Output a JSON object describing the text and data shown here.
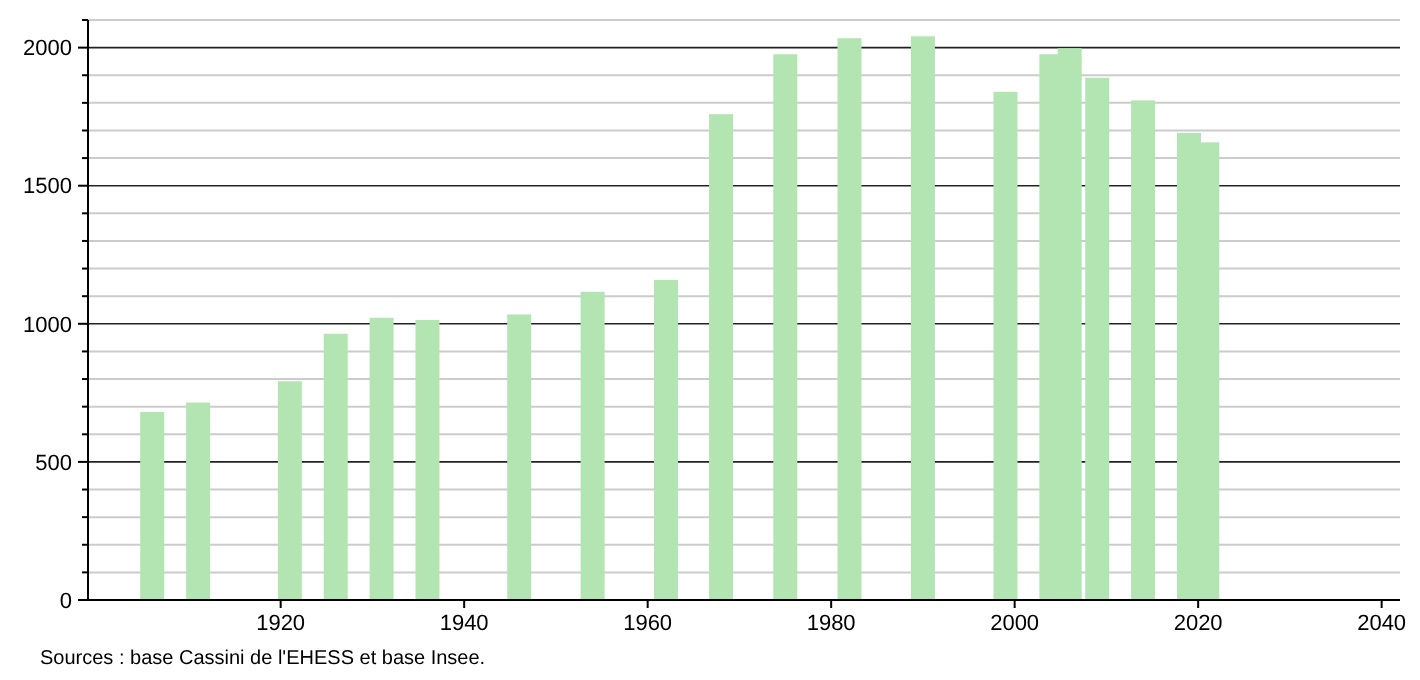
{
  "chart_data": {
    "type": "bar",
    "x": [
      1906,
      1911,
      1921,
      1926,
      1931,
      1936,
      1946,
      1954,
      1962,
      1968,
      1975,
      1982,
      1990,
      1999,
      2004,
      2006,
      2009,
      2014,
      2019,
      2021
    ],
    "values": [
      681,
      715,
      792,
      964,
      1022,
      1014,
      1034,
      1116,
      1159,
      1759,
      1976,
      2034,
      2041,
      1840,
      1976,
      1998,
      1891,
      1809,
      1691,
      1657
    ],
    "color": "#b3e5b3",
    "xlim": [
      1899,
      2042
    ],
    "xticks": [
      1920,
      1940,
      1960,
      1980,
      2000,
      2020,
      2040
    ],
    "ylim": [
      0,
      2100
    ],
    "yticks": [
      0,
      {
        "value": 100,
        "label": null
      },
      {
        "value": 200,
        "label": null
      },
      {
        "value": 300,
        "label": null
      },
      {
        "value": 400,
        "label": null
      },
      500,
      {
        "value": 600,
        "label": null
      },
      {
        "value": 700,
        "label": null
      },
      {
        "value": 800,
        "label": null
      },
      {
        "value": 900,
        "label": null
      },
      1000,
      {
        "value": 1100,
        "label": null
      },
      {
        "value": 1200,
        "label": null
      },
      {
        "value": 1300,
        "label": null
      },
      {
        "value": 1400,
        "label": null
      },
      1500,
      {
        "value": 1600,
        "label": null
      },
      {
        "value": 1700,
        "label": null
      },
      {
        "value": 1800,
        "label": null
      },
      {
        "value": 1900,
        "label": null
      },
      2000,
      {
        "value": 2100,
        "label": null
      }
    ],
    "grid": true,
    "annotations": [
      "Sources : base Cassini de l'EHESS et base Insee."
    ]
  }
}
